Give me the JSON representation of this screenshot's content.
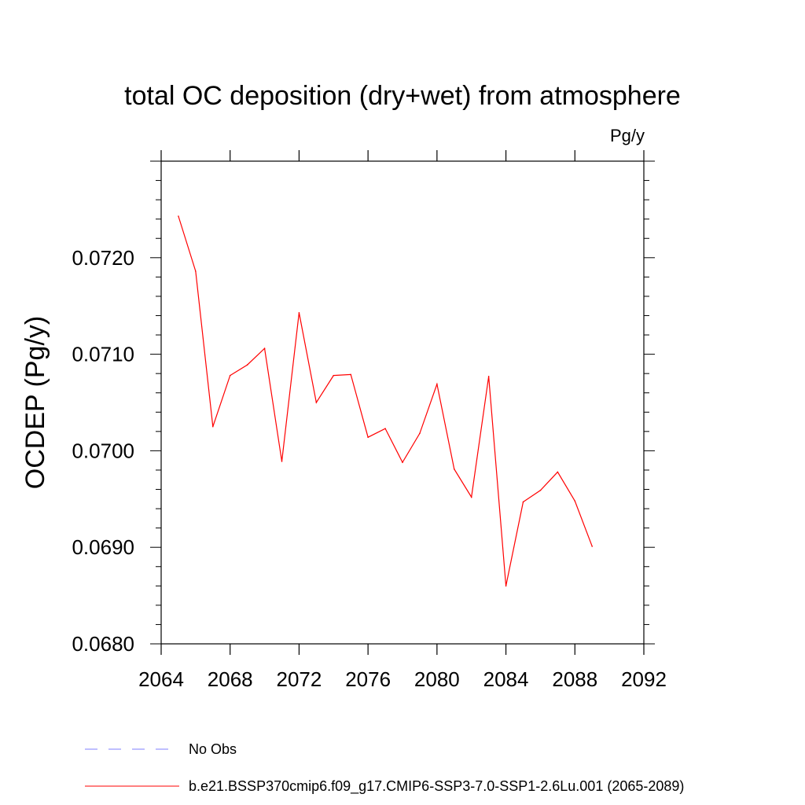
{
  "chart_data": {
    "type": "line",
    "title": "total OC deposition (dry+wet) from atmosphere",
    "units_label": "Pg/y",
    "ylabel": "OCDEP  (Pg/y)",
    "xlabel": "",
    "xlim": [
      2064,
      2092
    ],
    "ylim": [
      0.068,
      0.073
    ],
    "xticks": [
      2064,
      2068,
      2072,
      2076,
      2080,
      2084,
      2088,
      2092
    ],
    "xtick_labels": [
      "2064",
      "2068",
      "2072",
      "2076",
      "2080",
      "2084",
      "2088",
      "2092"
    ],
    "yticks": [
      0.068,
      0.069,
      0.07,
      0.071,
      0.072
    ],
    "ytick_labels": [
      "0.0680",
      "0.0690",
      "0.0700",
      "0.0710",
      "0.0720"
    ],
    "grid": false,
    "legend_position": "bottom",
    "series": [
      {
        "name": "b.e21.BSSP370cmip6.f09_g17.CMIP6-SSP3-7.0-SSP1-2.6Lu.001 (2065-2089)",
        "color": "#ff0000",
        "style": "solid",
        "x": [
          2065,
          2066,
          2067,
          2068,
          2069,
          2070,
          2071,
          2072,
          2073,
          2074,
          2075,
          2076,
          2077,
          2078,
          2079,
          2080,
          2081,
          2082,
          2083,
          2084,
          2085,
          2086,
          2087,
          2088,
          2089
        ],
        "y": [
          0.07243,
          0.07186,
          0.07025,
          0.07078,
          0.07089,
          0.07106,
          0.06989,
          0.07143,
          0.0705,
          0.07078,
          0.07079,
          0.07014,
          0.07023,
          0.06988,
          0.07018,
          0.07069,
          0.06981,
          0.06952,
          0.07077,
          0.0686,
          0.06947,
          0.06959,
          0.06978,
          0.06948,
          0.06901
        ]
      }
    ],
    "legend": [
      {
        "label": "No Obs",
        "color": "#7f7fff",
        "style": "dashed"
      },
      {
        "label": "b.e21.BSSP370cmip6.f09_g17.CMIP6-SSP3-7.0-SSP1-2.6Lu.001 (2065-2089)",
        "color": "#ff0000",
        "style": "solid"
      }
    ]
  }
}
